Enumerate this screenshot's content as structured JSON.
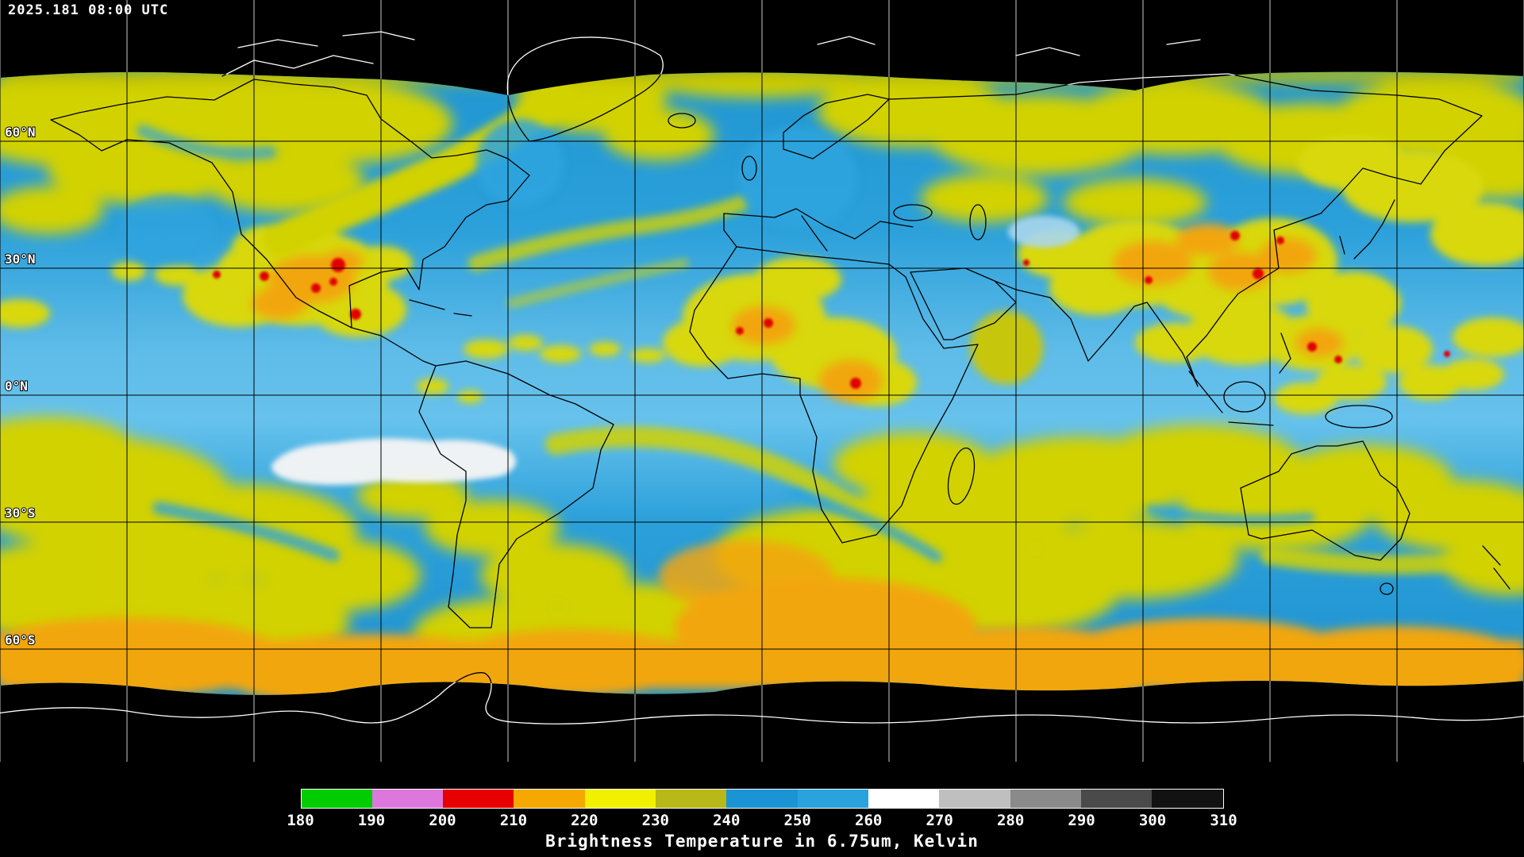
{
  "header": {
    "timestamp": "2025.181 08:00 UTC"
  },
  "map": {
    "latitude_labels": [
      "60°N",
      "30°N",
      "0°N",
      "30°S",
      "60°S"
    ],
    "grid": {
      "lon_step_deg": 30,
      "lat_step_deg": 30
    },
    "colors": {
      "space": "#000000",
      "warm_clear": "#2aa0da",
      "tropics_clear": "#63c0ec",
      "mid_cloud": "#d2d204",
      "cold_cloud": "#f2a60a",
      "very_cold_cloud": "#e00000",
      "warmest": "#f4f4f4"
    }
  },
  "legend": {
    "title": "Brightness Temperature in 6.75um, Kelvin",
    "units": "Kelvin",
    "ticks": [
      180,
      190,
      200,
      210,
      220,
      230,
      240,
      250,
      260,
      270,
      280,
      290,
      300,
      310
    ],
    "segments": [
      {
        "from": 180,
        "to": 190,
        "color": "#00cc00"
      },
      {
        "from": 190,
        "to": 200,
        "color": "#dd77dd"
      },
      {
        "from": 200,
        "to": 210,
        "color": "#e80000"
      },
      {
        "from": 210,
        "to": 220,
        "color": "#f5a800"
      },
      {
        "from": 220,
        "to": 230,
        "color": "#f0f000"
      },
      {
        "from": 230,
        "to": 240,
        "color": "#b8b818"
      },
      {
        "from": 240,
        "to": 250,
        "color": "#1a94d4"
      },
      {
        "from": 250,
        "to": 260,
        "color": "#2aa2de"
      },
      {
        "from": 260,
        "to": 270,
        "color": "#ffffff"
      },
      {
        "from": 270,
        "to": 280,
        "color": "#bfbfbf"
      },
      {
        "from": 280,
        "to": 290,
        "color": "#8a8a8a"
      },
      {
        "from": 290,
        "to": 300,
        "color": "#4a4a4a"
      },
      {
        "from": 300,
        "to": 310,
        "color": "#121212"
      }
    ]
  }
}
